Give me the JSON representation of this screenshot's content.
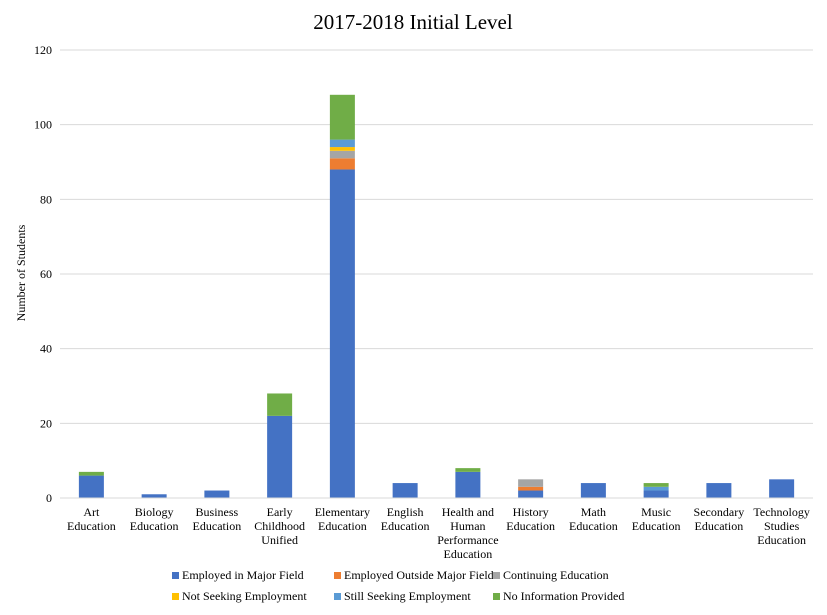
{
  "chart_data": {
    "type": "bar",
    "stacked": true,
    "title": "2017-2018 Initial Level",
    "xlabel": "",
    "ylabel": "Number of Students",
    "ylim": [
      0,
      120
    ],
    "yticks": [
      0,
      20,
      40,
      60,
      80,
      100,
      120
    ],
    "grid": true,
    "legend_position": "bottom",
    "categories": [
      [
        "Art",
        "Education"
      ],
      [
        "Biology",
        "Education"
      ],
      [
        "Business",
        "Education"
      ],
      [
        "Early",
        "Childhood",
        "Unified"
      ],
      [
        "Elementary",
        "Education"
      ],
      [
        "English",
        "Education"
      ],
      [
        "Health and",
        "Human",
        "Performance",
        "Education"
      ],
      [
        "History",
        "Education"
      ],
      [
        "Math",
        "Education"
      ],
      [
        "Music",
        "Education"
      ],
      [
        "Secondary",
        "Education"
      ],
      [
        "Technology",
        "Studies",
        "Education"
      ]
    ],
    "series": [
      {
        "name": "Employed in Major Field",
        "color": "#4472C4",
        "values": [
          6,
          1,
          2,
          22,
          88,
          4,
          7,
          2,
          4,
          2,
          4,
          5
        ]
      },
      {
        "name": "Employed Outside Major Field",
        "color": "#ED7D31",
        "values": [
          0,
          0,
          0,
          0,
          3,
          0,
          0,
          1,
          0,
          0,
          0,
          0
        ]
      },
      {
        "name": "Continuing Education",
        "color": "#A5A5A5",
        "values": [
          0,
          0,
          0,
          0,
          2,
          0,
          0,
          2,
          0,
          0,
          0,
          0
        ]
      },
      {
        "name": "Not Seeking Employment",
        "color": "#FFC000",
        "values": [
          0,
          0,
          0,
          0,
          1,
          0,
          0,
          0,
          0,
          0,
          0,
          0
        ]
      },
      {
        "name": "Still Seeking Employment",
        "color": "#5B9BD5",
        "values": [
          0,
          0,
          0,
          0,
          2,
          0,
          0,
          0,
          0,
          1,
          0,
          0
        ]
      },
      {
        "name": "No Information Provided",
        "color": "#70AD47",
        "values": [
          1,
          0,
          0,
          6,
          12,
          0,
          1,
          0,
          0,
          1,
          0,
          0
        ]
      }
    ]
  }
}
